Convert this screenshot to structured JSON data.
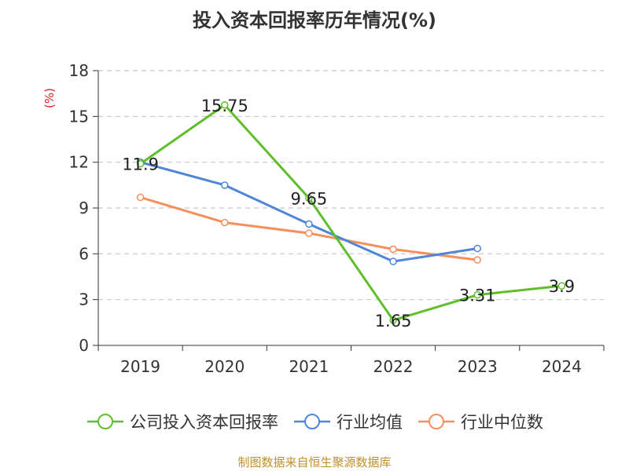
{
  "title": "投入资本回报率历年情况(%)",
  "source": "制图数据来自恒生聚源数据库",
  "chart_data": {
    "type": "line",
    "title": "投入资本回报率历年情况(%)",
    "ylabel": "(%)",
    "xlabel": "",
    "categories": [
      "2019",
      "2020",
      "2021",
      "2022",
      "2023",
      "2024"
    ],
    "ylim": [
      0,
      18
    ],
    "yticks": [
      0,
      3,
      6,
      9,
      12,
      15,
      18
    ],
    "grid": true,
    "legend_position": "bottom",
    "series": [
      {
        "name": "公司投入资本回报率",
        "color": "#5fbf2a",
        "values": [
          11.9,
          15.75,
          9.65,
          1.65,
          3.31,
          3.9
        ],
        "labels": [
          "11.9",
          "15.75",
          "9.65",
          "1.65",
          "3.31",
          "3.9"
        ]
      },
      {
        "name": "行业均值",
        "color": "#4f86d8",
        "values": [
          12.0,
          10.5,
          7.95,
          5.5,
          6.35,
          null
        ]
      },
      {
        "name": "行业中位数",
        "color": "#f78f5c",
        "values": [
          9.7,
          8.05,
          7.35,
          6.3,
          5.6,
          null
        ]
      }
    ]
  }
}
